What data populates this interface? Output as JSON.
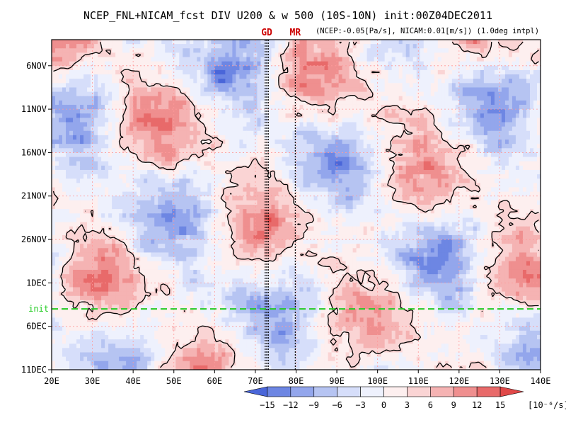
{
  "chart_data": {
    "type": "heatmap",
    "title": "NCEP_FNL+NICAM_fcst DIV U200 & w 500 (10S-10N) init:00Z04DEC2011",
    "subtitle": "(NCEP:-0.05[Pa/s], NICAM:0.01[m/s]) (1.0deg intpl)",
    "x_axis": {
      "range": [
        "20E",
        "140E"
      ],
      "ticks": [
        "20E",
        "30E",
        "40E",
        "50E",
        "60E",
        "70E",
        "80E",
        "90E",
        "100E",
        "110E",
        "120E",
        "130E",
        "140E"
      ],
      "grid": true
    },
    "y_axis": {
      "range": [
        "3NOV2011",
        "11DEC2011"
      ],
      "direction": "time increases downward",
      "ticks": [
        "6NOV",
        "11NOV",
        "16NOV",
        "21NOV",
        "26NOV",
        "1DEC",
        "6DEC",
        "11DEC"
      ],
      "grid": true
    },
    "colorbar": {
      "levels": [
        "-15",
        "-12",
        "-9",
        "-6",
        "-3",
        "0",
        "3",
        "6",
        "9",
        "12",
        "15"
      ],
      "unit": "[10⁻⁶/s]",
      "colors": [
        "#4a66d9",
        "#6d86e3",
        "#93a6ec",
        "#b6c4f2",
        "#d6defa",
        "#eef1fd",
        "#fdefef",
        "#fad4d4",
        "#f5b3b3",
        "#ef8f8f",
        "#e86a6a",
        "#e04848"
      ]
    },
    "init_line": {
      "label": "init",
      "date": "4DEC2011",
      "color": "#22cc22"
    },
    "markers": [
      {
        "label": "GD",
        "lon": 72.8,
        "color": "#cc0000"
      },
      {
        "label": "MR",
        "lon": 79.8,
        "color": "#cc0000"
      }
    ],
    "field_description": "Longitude-time Hovmoller of 200 hPa divergence (shaded) with 500 hPa vertical velocity contours; red bands propagate eastward"
  }
}
